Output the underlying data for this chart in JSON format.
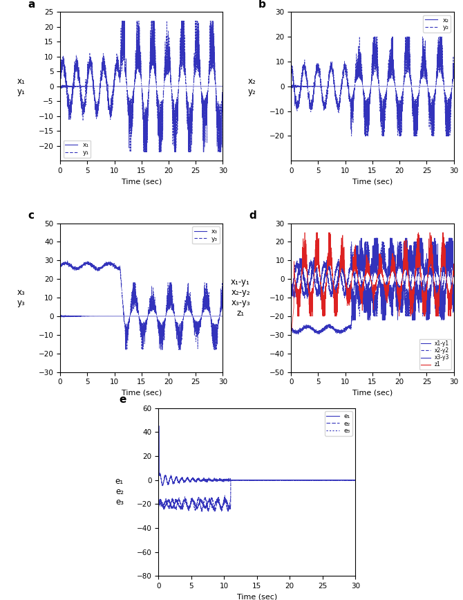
{
  "xlabel": "Time (sec)",
  "ylabel_a": "x₁\ny₁",
  "ylabel_b": "x₂\ny₂",
  "ylabel_c": "x₃\ny₃",
  "ylabel_d": "x₁-y₁\nx₂-y₂\nx₃-y₃\nz₁",
  "ylabel_e": "e₁\ne₂\ne₃",
  "xlim": [
    0,
    30
  ],
  "ylim_a": [
    -25,
    25
  ],
  "ylim_b": [
    -30,
    30
  ],
  "ylim_c": [
    -30,
    50
  ],
  "ylim_d": [
    -50,
    30
  ],
  "ylim_e": [
    -80,
    60
  ],
  "color_blue": "#3333bb",
  "color_red": "#dd2222",
  "dt": 0.01,
  "t_end": 30
}
